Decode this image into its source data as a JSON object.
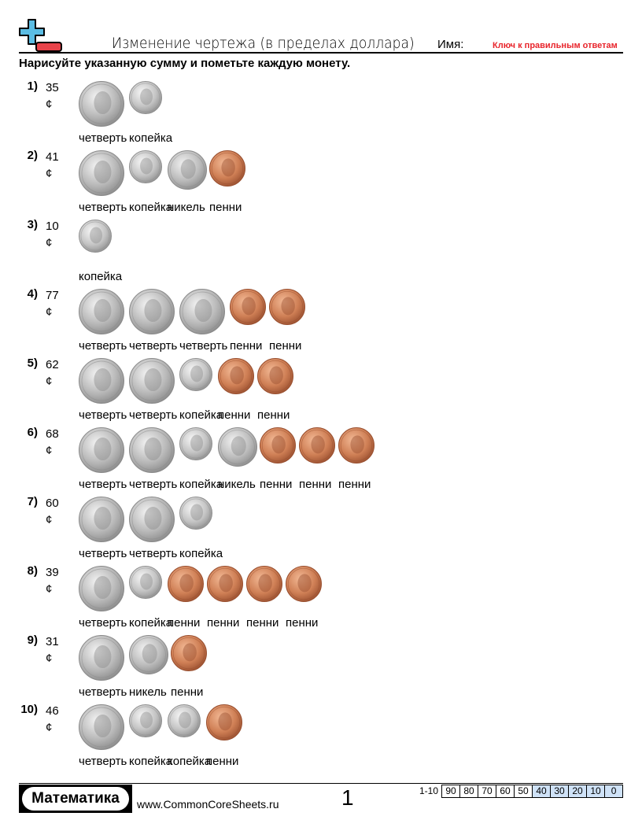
{
  "header": {
    "title": "Изменение чертежа (в пределах доллара)",
    "name_label": "Имя:",
    "answer_key": "Ключ к правильным ответам"
  },
  "instructions": "Нарисуйте указанную сумму и пометьте каждую монету.",
  "colors": {
    "logo_plus": "#5bbde4",
    "logo_minus": "#e8434a",
    "answer_key": "#e8242b",
    "score_shaded": "#cfe2f7"
  },
  "problems": [
    {
      "number": "1)",
      "amount": "35",
      "unit": "¢",
      "coins": [
        "quarter",
        "dime"
      ],
      "labels": [
        "четверть",
        "копейка"
      ]
    },
    {
      "number": "2)",
      "amount": "41",
      "unit": "¢",
      "coins": [
        "quarter",
        "dime",
        "nickel",
        "penny"
      ],
      "labels": [
        "четверть",
        "копейка",
        "никель",
        "пенни"
      ]
    },
    {
      "number": "3)",
      "amount": "10",
      "unit": "¢",
      "coins": [
        "dime"
      ],
      "labels": [
        "копейка"
      ]
    },
    {
      "number": "4)",
      "amount": "77",
      "unit": "¢",
      "coins": [
        "quarter",
        "quarter",
        "quarter",
        "penny",
        "penny"
      ],
      "labels": [
        "четверть",
        "четверть",
        "четверть",
        "пенни",
        "пенни"
      ]
    },
    {
      "number": "5)",
      "amount": "62",
      "unit": "¢",
      "coins": [
        "quarter",
        "quarter",
        "dime",
        "penny",
        "penny"
      ],
      "labels": [
        "четверть",
        "четверть",
        "копейка",
        "пенни",
        "пенни"
      ]
    },
    {
      "number": "6)",
      "amount": "68",
      "unit": "¢",
      "coins": [
        "quarter",
        "quarter",
        "dime",
        "nickel",
        "penny",
        "penny",
        "penny"
      ],
      "labels": [
        "четверть",
        "четверть",
        "копейка",
        "никель",
        "пенни",
        "пенни",
        "пенни"
      ]
    },
    {
      "number": "7)",
      "amount": "60",
      "unit": "¢",
      "coins": [
        "quarter",
        "quarter",
        "dime"
      ],
      "labels": [
        "четверть",
        "четверть",
        "копейка"
      ]
    },
    {
      "number": "8)",
      "amount": "39",
      "unit": "¢",
      "coins": [
        "quarter",
        "dime",
        "penny",
        "penny",
        "penny",
        "penny"
      ],
      "labels": [
        "четверть",
        "копейка",
        "пенни",
        "пенни",
        "пенни",
        "пенни"
      ]
    },
    {
      "number": "9)",
      "amount": "31",
      "unit": "¢",
      "coins": [
        "quarter",
        "nickel",
        "penny"
      ],
      "labels": [
        "четверть",
        "никель",
        "пенни"
      ]
    },
    {
      "number": "10)",
      "amount": "46",
      "unit": "¢",
      "coins": [
        "quarter",
        "dime",
        "dime",
        "penny"
      ],
      "labels": [
        "четверть",
        "копейка",
        "копейка",
        "пенни"
      ]
    }
  ],
  "footer": {
    "brand": "Математика",
    "site": "www.CommonCoreSheets.ru",
    "page": "1",
    "score_range": "1-10",
    "scores": [
      "90",
      "80",
      "70",
      "60",
      "50",
      "40",
      "30",
      "20",
      "10",
      "0"
    ],
    "shaded_from": "40"
  }
}
